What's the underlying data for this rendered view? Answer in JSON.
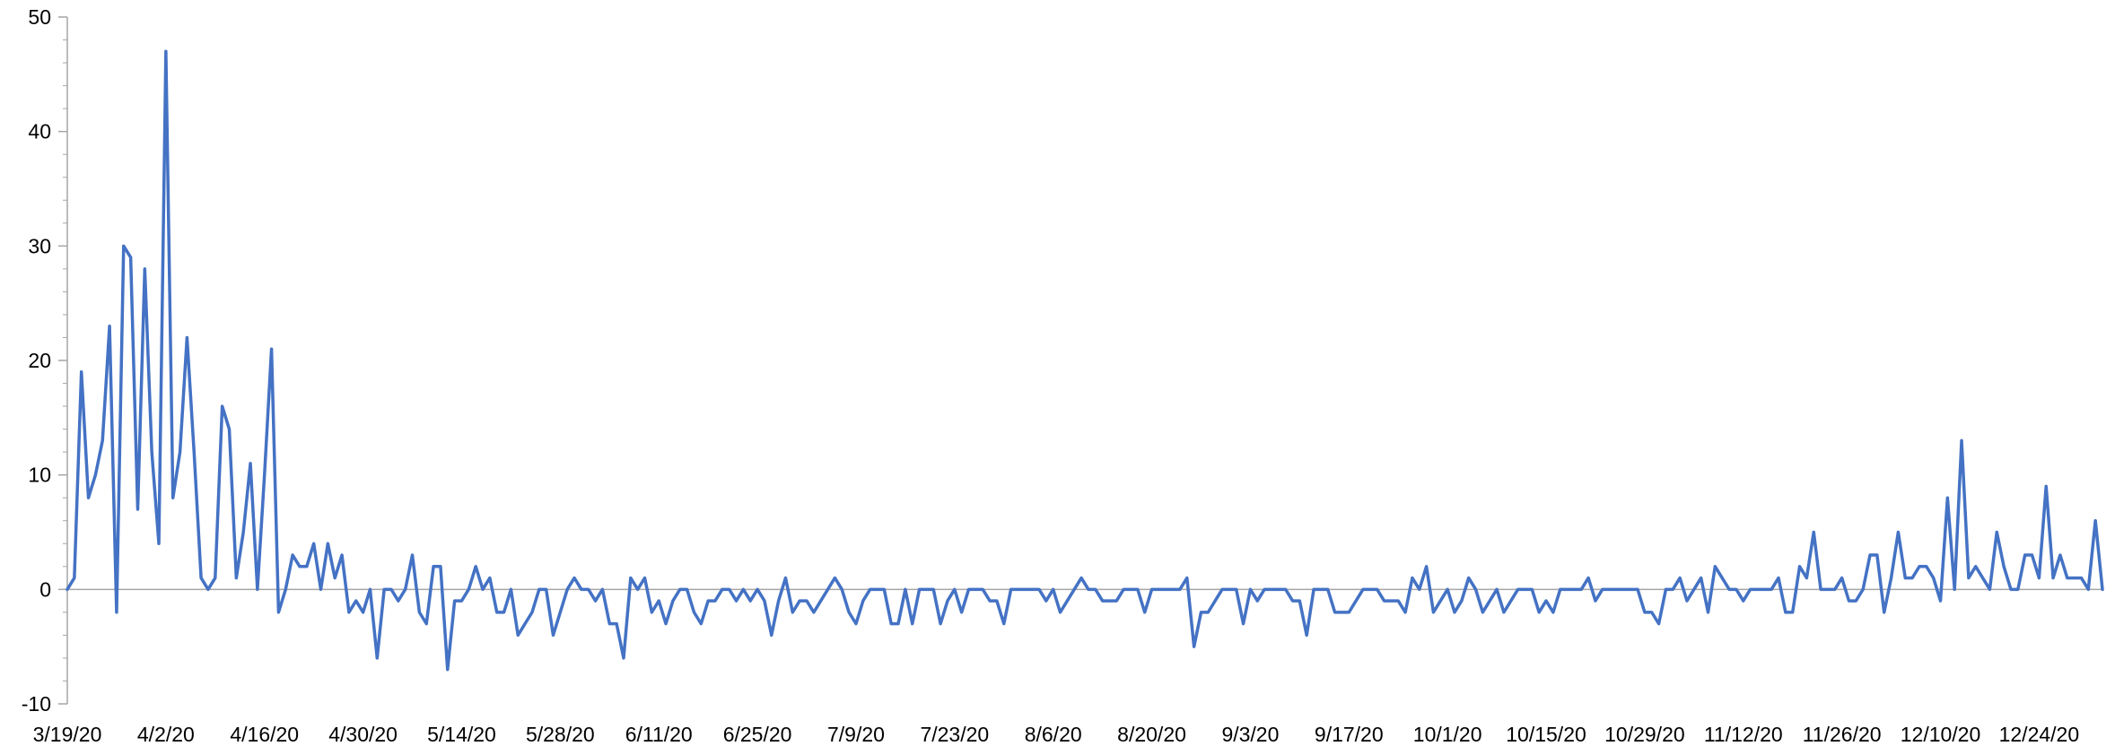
{
  "chart_data": {
    "type": "line",
    "title": "",
    "xlabel": "",
    "ylabel": "",
    "ylim": [
      -10,
      50
    ],
    "grid": false,
    "legend": "none",
    "x_start": "3/19/20",
    "x_end": "12/31/20",
    "x_tick_labels": [
      "3/19/20",
      "4/2/20",
      "4/16/20",
      "4/30/20",
      "5/14/20",
      "5/28/20",
      "6/11/20",
      "6/25/20",
      "7/9/20",
      "7/23/20",
      "8/6/20",
      "8/20/20",
      "9/3/20",
      "9/17/20",
      "10/1/20",
      "10/15/20",
      "10/29/20",
      "11/12/20",
      "11/26/20",
      "12/10/20",
      "12/24/20"
    ],
    "y_ticks": [
      -10,
      0,
      10,
      20,
      30,
      40,
      50
    ],
    "y_tick_labels": [
      "-10",
      "0",
      "10",
      "20",
      "30",
      "40",
      "50"
    ],
    "colors": {
      "series": "#4472C4",
      "axis": "#A6A6A6",
      "zero_line": "#A6A6A6"
    },
    "series": [
      {
        "name": "",
        "values": [
          0,
          1,
          19,
          8,
          10,
          13,
          23,
          -2,
          30,
          29,
          7,
          28,
          12,
          4,
          47,
          8,
          12,
          22,
          12,
          1,
          0,
          1,
          16,
          14,
          1,
          5,
          11,
          0,
          10,
          21,
          -2,
          0,
          3,
          2,
          2,
          4,
          0,
          4,
          1,
          3,
          -2,
          -1,
          -2,
          0,
          -6,
          0,
          0,
          -1,
          0,
          3,
          -2,
          -3,
          2,
          2,
          -7,
          -1,
          -1,
          0,
          2,
          0,
          1,
          -2,
          -2,
          0,
          -4,
          -3,
          -2,
          0,
          0,
          -4,
          -2,
          0,
          1,
          0,
          0,
          -1,
          0,
          -3,
          -3,
          -6,
          1,
          0,
          1,
          -2,
          -1,
          -3,
          -1,
          0,
          0,
          -2,
          -3,
          -1,
          -1,
          0,
          0,
          -1,
          0,
          -1,
          0,
          -1,
          -4,
          -1,
          1,
          -2,
          -1,
          -1,
          -2,
          -1,
          0,
          1,
          0,
          -2,
          -3,
          -1,
          0,
          0,
          0,
          -3,
          -3,
          0,
          -3,
          0,
          0,
          0,
          -3,
          -1,
          0,
          -2,
          0,
          0,
          0,
          -1,
          -1,
          -3,
          0,
          0,
          0,
          0,
          0,
          -1,
          0,
          -2,
          -1,
          0,
          1,
          0,
          0,
          -1,
          -1,
          -1,
          0,
          0,
          0,
          -2,
          0,
          0,
          0,
          0,
          0,
          1,
          -5,
          -2,
          -2,
          -1,
          0,
          0,
          0,
          -3,
          0,
          -1,
          0,
          0,
          0,
          0,
          -1,
          -1,
          -4,
          0,
          0,
          0,
          -2,
          -2,
          -2,
          -1,
          0,
          0,
          0,
          -1,
          -1,
          -1,
          -2,
          1,
          0,
          2,
          -2,
          -1,
          0,
          -2,
          -1,
          1,
          0,
          -2,
          -1,
          0,
          -2,
          -1,
          0,
          0,
          0,
          -2,
          -1,
          -2,
          0,
          0,
          0,
          0,
          1,
          -1,
          0,
          0,
          0,
          0,
          0,
          0,
          -2,
          -2,
          -3,
          0,
          0,
          1,
          -1,
          0,
          1,
          -2,
          2,
          1,
          0,
          0,
          -1,
          0,
          0,
          0,
          0,
          1,
          -2,
          -2,
          2,
          1,
          5,
          0,
          0,
          0,
          1,
          -1,
          -1,
          0,
          3,
          3,
          -2,
          1,
          5,
          1,
          1,
          2,
          2,
          1,
          -1,
          8,
          0,
          13,
          1,
          2,
          1,
          0,
          5,
          2,
          0,
          0,
          3,
          3,
          1,
          9,
          1,
          3,
          1,
          1,
          1,
          0,
          6,
          0
        ]
      }
    ]
  }
}
